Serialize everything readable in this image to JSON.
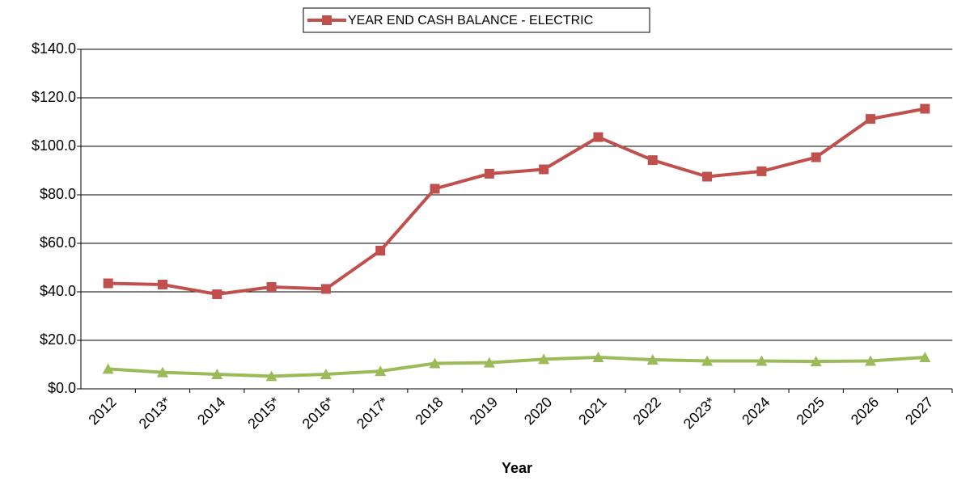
{
  "chart_data": {
    "type": "line",
    "x_label": "Year",
    "categories": [
      "2012",
      "2013*",
      "2014",
      "2015*",
      "2016*",
      "2017*",
      "2018",
      "2019",
      "2020",
      "2021",
      "2022",
      "2023*",
      "2024",
      "2025",
      "2026",
      "2027"
    ],
    "series": [
      {
        "name": "YEAR END CASH BALANCE - ELECTRIC",
        "color": "#c0504d",
        "marker": "square",
        "values": [
          43.5,
          43.0,
          39.0,
          42.0,
          41.2,
          57.0,
          82.5,
          88.7,
          90.5,
          103.8,
          94.3,
          87.5,
          89.7,
          95.5,
          111.3,
          115.5
        ]
      },
      {
        "color": "#9bbb59",
        "marker": "triangle",
        "values": [
          8.2,
          6.8,
          6.0,
          5.2,
          6.0,
          7.3,
          10.5,
          10.8,
          12.2,
          13.0,
          12.0,
          11.5,
          11.5,
          11.3,
          11.5,
          13.0
        ]
      }
    ],
    "ylim": [
      0,
      140
    ],
    "yticks": [
      {
        "value": 0,
        "label": "$0.0"
      },
      {
        "value": 20,
        "label": "$20.0"
      },
      {
        "value": 40,
        "label": "$40.0"
      },
      {
        "value": 60,
        "label": "$60.0"
      },
      {
        "value": 80,
        "label": "$80.0"
      },
      {
        "value": 100,
        "label": "$100.0"
      },
      {
        "value": 120,
        "label": "$120.0"
      },
      {
        "value": 140,
        "label": "$140.0"
      }
    ],
    "grid": true,
    "legend": "top"
  }
}
